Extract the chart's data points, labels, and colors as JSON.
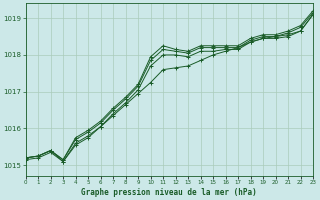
{
  "background_color": "#cce8e8",
  "grid_color": "#aaccbb",
  "line_color": "#1a5c28",
  "title": "Graphe pression niveau de la mer (hPa)",
  "xlim": [
    0,
    23
  ],
  "ylim": [
    1014.7,
    1019.4
  ],
  "yticks": [
    1015,
    1016,
    1017,
    1018,
    1019
  ],
  "xticks": [
    0,
    1,
    2,
    3,
    4,
    5,
    6,
    7,
    8,
    9,
    10,
    11,
    12,
    13,
    14,
    15,
    16,
    17,
    18,
    19,
    20,
    21,
    22,
    23
  ],
  "line1_x": [
    0,
    1,
    2,
    3,
    4,
    5,
    6,
    7,
    8,
    9,
    10,
    11,
    12,
    13,
    14,
    15,
    16,
    17,
    18,
    19,
    20,
    21,
    22,
    23
  ],
  "line1_y": [
    1015.15,
    1015.2,
    1015.35,
    1015.1,
    1015.55,
    1015.75,
    1016.05,
    1016.35,
    1016.65,
    1016.95,
    1017.25,
    1017.6,
    1017.65,
    1017.7,
    1017.85,
    1018.0,
    1018.1,
    1018.2,
    1018.35,
    1018.45,
    1018.5,
    1018.55,
    1018.65,
    1019.1
  ],
  "line2_x": [
    0,
    1,
    2,
    3,
    4,
    5,
    6,
    7,
    8,
    9,
    10,
    11,
    12,
    13,
    14,
    15,
    16,
    17,
    18,
    19,
    20,
    21,
    22,
    23
  ],
  "line2_y": [
    1015.2,
    1015.25,
    1015.4,
    1015.15,
    1015.7,
    1015.9,
    1016.15,
    1016.5,
    1016.8,
    1017.15,
    1017.85,
    1018.15,
    1018.1,
    1018.05,
    1018.2,
    1018.2,
    1018.2,
    1018.2,
    1018.4,
    1018.5,
    1018.5,
    1018.6,
    1018.75,
    1019.15
  ],
  "line3_x": [
    0,
    1,
    2,
    3,
    4,
    5,
    6,
    7,
    8,
    9,
    10,
    11,
    12,
    13,
    14,
    15,
    16,
    17,
    18,
    19,
    20,
    21,
    22,
    23
  ],
  "line3_y": [
    1015.2,
    1015.25,
    1015.4,
    1015.15,
    1015.75,
    1015.95,
    1016.2,
    1016.55,
    1016.85,
    1017.2,
    1017.95,
    1018.25,
    1018.15,
    1018.1,
    1018.25,
    1018.25,
    1018.25,
    1018.25,
    1018.45,
    1018.55,
    1018.55,
    1018.65,
    1018.8,
    1019.2
  ],
  "line4_x": [
    0,
    1,
    2,
    3,
    4,
    5,
    6,
    7,
    8,
    9,
    10,
    11,
    12,
    13,
    14,
    15,
    16,
    17,
    18,
    19,
    20,
    21,
    22,
    23
  ],
  "line4_y": [
    1015.2,
    1015.25,
    1015.4,
    1015.1,
    1015.6,
    1015.8,
    1016.05,
    1016.4,
    1016.7,
    1017.05,
    1017.7,
    1018.0,
    1018.0,
    1017.95,
    1018.1,
    1018.1,
    1018.15,
    1018.15,
    1018.35,
    1018.45,
    1018.45,
    1018.5,
    1018.65,
    1019.1
  ]
}
